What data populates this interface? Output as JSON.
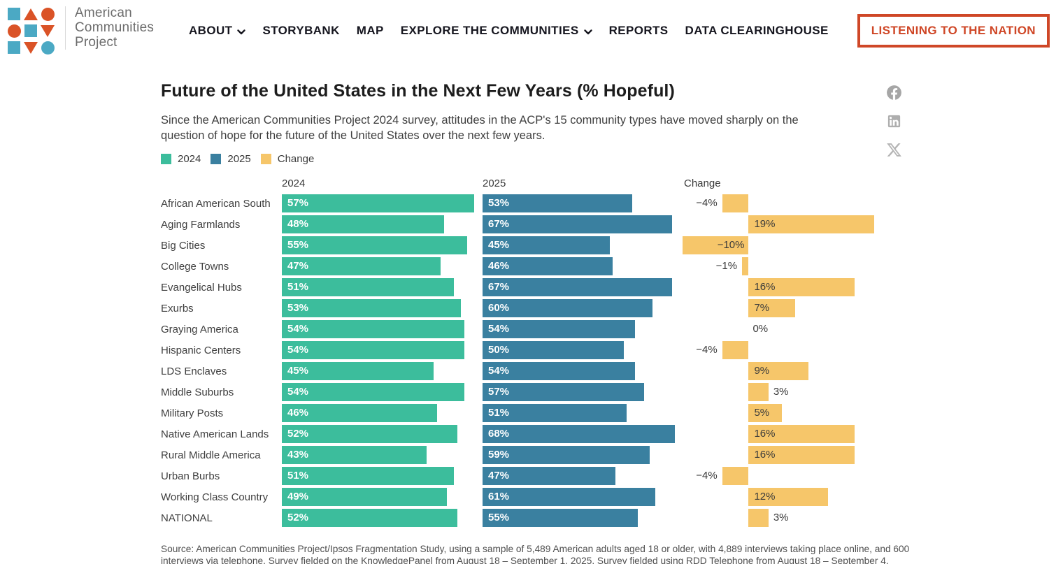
{
  "header": {
    "logo_lines": [
      "American",
      "Communities",
      "Project"
    ],
    "nav": [
      "ABOUT",
      "STORYBANK",
      "MAP",
      "EXPLORE THE COMMUNITIES",
      "REPORTS",
      "DATA CLEARINGHOUSE"
    ],
    "cta_label": "LISTENING TO THE NATION",
    "logo_colors": {
      "blue": "#4ba9c4",
      "orange": "#da5327"
    }
  },
  "share": {
    "icons": [
      "facebook",
      "linkedin",
      "x"
    ]
  },
  "chart_data": {
    "type": "bar",
    "title": "Future of the United States in the Next Few Years (% Hopeful)",
    "subtitle": "Since the American Communities Project 2024 survey, attitudes in the ACP's 15 community types have moved sharply on the question of hope for the future of the United States over the next few years.",
    "legend": [
      {
        "label": "2024",
        "color": "#3cbd9c"
      },
      {
        "label": "2025",
        "color": "#3a80a0"
      },
      {
        "label": "Change",
        "color": "#f6c66a"
      }
    ],
    "columns": [
      "2024",
      "2025",
      "Change"
    ],
    "categories": [
      "African American South",
      "Aging Farmlands",
      "Big Cities",
      "College Towns",
      "Evangelical Hubs",
      "Exurbs",
      "Graying America",
      "Hispanic Centers",
      "LDS Enclaves",
      "Middle Suburbs",
      "Military Posts",
      "Native American Lands",
      "Rural Middle America",
      "Urban Burbs",
      "Working Class Country",
      "NATIONAL"
    ],
    "series": [
      {
        "name": "2024",
        "values": [
          57,
          48,
          55,
          47,
          51,
          53,
          54,
          54,
          45,
          54,
          46,
          52,
          43,
          51,
          49,
          52
        ]
      },
      {
        "name": "2025",
        "values": [
          53,
          67,
          45,
          46,
          67,
          60,
          54,
          50,
          54,
          57,
          51,
          68,
          59,
          47,
          61,
          55
        ]
      },
      {
        "name": "Change",
        "values": [
          -4,
          19,
          -10,
          -1,
          16,
          7,
          0,
          -4,
          9,
          3,
          5,
          16,
          16,
          -4,
          12,
          3
        ]
      }
    ],
    "value_suffix": "%",
    "layout_hints": {
      "bars_scaled_to_column_max": true,
      "change_axis_range": [
        -10,
        19
      ],
      "grid": false,
      "legend_position": "top-left"
    },
    "source": "Source: American Communities Project/Ipsos Fragmentation Study, using a sample of 5,489 American adults aged 18 or older, with 4,889 interviews taking place online, and 600 interviews via telephone. Survey fielded on the KnowledgePanel from August 18 – September 1, 2025. Survey fielded using RDD Telephone from August 18 – September 4."
  }
}
